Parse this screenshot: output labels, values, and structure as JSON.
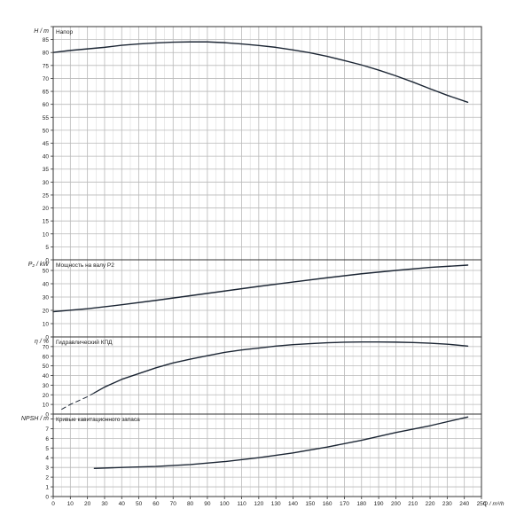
{
  "chart_data": {
    "type": "line",
    "x_axis": {
      "label": "Q / m³/h",
      "range": [
        0,
        250
      ],
      "tick_step": 10,
      "minor_step": 5
    },
    "grid": true,
    "panels": [
      {
        "id": "head",
        "title": "Напор",
        "ylabel": "H / m",
        "ylim": [
          0,
          90
        ],
        "y_tick_step": 5,
        "series": [
          {
            "name": "Напор",
            "style": "solid",
            "x": [
              0,
              10,
              20,
              30,
              40,
              50,
              60,
              70,
              80,
              90,
              100,
              110,
              120,
              130,
              140,
              150,
              160,
              170,
              180,
              190,
              200,
              210,
              220,
              230,
              242
            ],
            "y": [
              80,
              80.8,
              81.4,
              82,
              82.8,
              83.3,
              83.7,
              84,
              84.1,
              84.1,
              83.8,
              83.3,
              82.7,
              82,
              81,
              79.9,
              78.5,
              76.9,
              75.2,
              73.2,
              71,
              68.6,
              66,
              63.5,
              60.8
            ]
          }
        ]
      },
      {
        "id": "power",
        "title": "Мощность на валу P2",
        "ylabel": "P₂ / kW",
        "ylim": [
          0,
          58
        ],
        "y_tick_step": 10,
        "series": [
          {
            "name": "Мощность на валу P2",
            "style": "solid",
            "x": [
              0,
              20,
              40,
              60,
              80,
              100,
              120,
              140,
              160,
              180,
              200,
              220,
              242
            ],
            "y": [
              19,
              21.2,
              24.2,
              27.5,
              31,
              34.5,
              38,
              41.3,
              44.5,
              47.5,
              50,
              52.3,
              54
            ]
          }
        ]
      },
      {
        "id": "efficiency",
        "title": "Гидравлический КПД",
        "ylabel": "η / %",
        "ylim": [
          0,
          80
        ],
        "y_tick_step": 10,
        "series": [
          {
            "name": "Гидравлический КПД (экстраполяция)",
            "style": "dashed",
            "x": [
              5,
              10,
              15,
              20,
              24
            ],
            "y": [
              5,
              10,
              14,
              18,
              22
            ]
          },
          {
            "name": "Гидравлический КПД",
            "style": "solid",
            "x": [
              24,
              30,
              40,
              50,
              60,
              70,
              80,
              90,
              100,
              110,
              120,
              130,
              140,
              150,
              160,
              170,
              180,
              190,
              200,
              210,
              220,
              230,
              242
            ],
            "y": [
              22,
              28,
              36,
              42,
              48,
              53,
              57,
              60.5,
              64,
              66.5,
              68.5,
              70.5,
              72,
              73,
              74,
              74.5,
              74.8,
              74.8,
              74.6,
              74.2,
              73.5,
              72.5,
              70.5
            ]
          }
        ]
      },
      {
        "id": "npsh",
        "title": "Кривые кавитационного запаса",
        "ylabel": "NPSH / m",
        "ylim": [
          0,
          8.5
        ],
        "y_tick_step": 1,
        "series": [
          {
            "name": "Кривые кавитационного запаса",
            "style": "solid",
            "x": [
              24,
              40,
              60,
              80,
              100,
              120,
              140,
              160,
              180,
              200,
              220,
              242
            ],
            "y": [
              2.9,
              3.0,
              3.1,
              3.3,
              3.6,
              4.0,
              4.5,
              5.1,
              5.8,
              6.6,
              7.3,
              8.2
            ]
          }
        ]
      }
    ]
  }
}
